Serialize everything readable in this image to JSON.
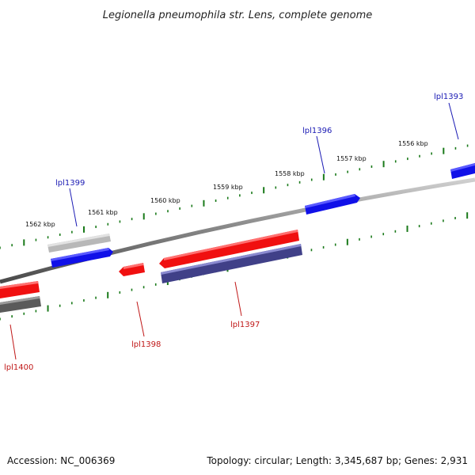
{
  "title": "Legionella pneumophila str. Lens, complete genome",
  "footer": {
    "accession": "Accession: NC_006369",
    "summary": "Topology: circular; Length: 3,345,687 bp; Genes: 2,931"
  },
  "colors": {
    "backbone": "#808080",
    "ticks": "#1a7a1a",
    "forward_label": "#1a1ab4",
    "reverse_label": "#c01818",
    "gene_blue": "#1010e8",
    "gene_red": "#f01010",
    "gene_gray": "#b8b8b8",
    "gene_purple": "#404088",
    "gene_darkgray": "#5a5a5a"
  },
  "ticks": {
    "labels": [
      "1562 kbp",
      "1561 kbp",
      "1560 kbp",
      "1559 kbp",
      "1558 kbp",
      "1557 kbp",
      "1556 kbp"
    ]
  },
  "genes": [
    {
      "name": "lpl1399",
      "color": "gene_blue",
      "strand": "forward",
      "labeled": true
    },
    {
      "name": "",
      "color": "gene_gray",
      "strand": "forward",
      "labeled": false
    },
    {
      "name": "lpl1396",
      "color": "gene_blue",
      "strand": "forward",
      "labeled": true
    },
    {
      "name": "lpl1393",
      "color": "gene_blue",
      "strand": "forward",
      "labeled": true
    },
    {
      "name": "lpl1398",
      "color": "gene_red",
      "strand": "reverse",
      "labeled": true
    },
    {
      "name": "lpl1397",
      "color": "gene_red",
      "strand": "reverse",
      "labeled": true
    },
    {
      "name": "",
      "color": "gene_purple",
      "strand": "reverse",
      "labeled": false
    },
    {
      "name": "lpl1400",
      "color": "gene_red",
      "strand": "reverse",
      "labeled": true
    },
    {
      "name": "",
      "color": "gene_darkgray",
      "strand": "reverse",
      "labeled": false
    }
  ]
}
